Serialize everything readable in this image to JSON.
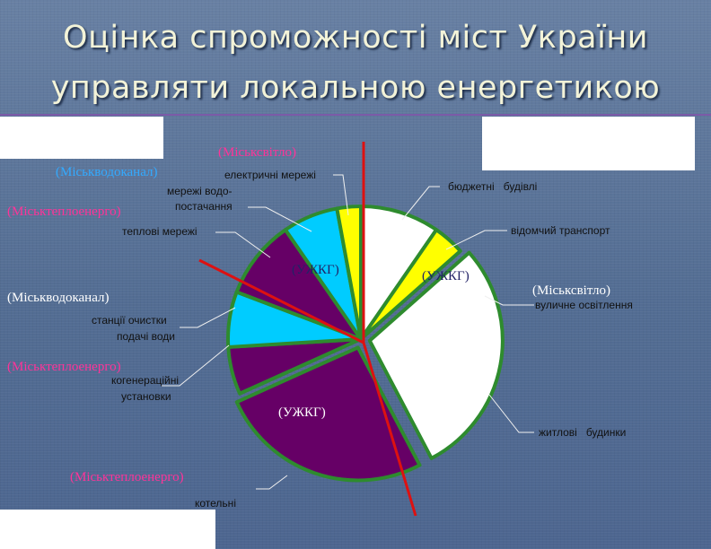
{
  "slide": {
    "title_line1": "Оцінка спроможності міст України",
    "title_line2": "управляти локальною енергетикою"
  },
  "colors": {
    "white": "#ffffff",
    "yellow": "#ffff00",
    "cyan": "#00ccff",
    "purple": "#660066",
    "outline": "#2e8b2e",
    "divider": "#dd1111",
    "ann_blue": "#33aaff",
    "ann_pink": "#ff3399",
    "ann_dark": "#222266",
    "ann_white": "#ffffff"
  },
  "chart_data": {
    "type": "pie",
    "title": "",
    "slices": [
      {
        "label": "бюджетні будівлі",
        "value": 10,
        "color": "#ffffff",
        "exploded": false
      },
      {
        "label": "відомчий транспорт",
        "value": 4,
        "color": "#ffff00",
        "exploded": false
      },
      {
        "label": "вуличне освітлення",
        "value": 0,
        "color": "#ffff00",
        "exploded": false
      },
      {
        "label": "житлові будинки",
        "value": 30,
        "color": "#ffffff",
        "exploded": true
      },
      {
        "label": "котельні",
        "value": 27,
        "color": "#660066",
        "exploded": true
      },
      {
        "label": "когенераційні установки",
        "value": 6,
        "color": "#660066",
        "exploded": false
      },
      {
        "label": "станції очистки подачі води",
        "value": 7,
        "color": "#00ccff",
        "exploded": false
      },
      {
        "label": "теплові мережі",
        "value": 10,
        "color": "#660066",
        "exploded": false
      },
      {
        "label": "мережі водо- постачання",
        "value": 7,
        "color": "#00ccff",
        "exploded": false
      },
      {
        "label": "електричні мережі",
        "value": 3,
        "color": "#ffff00",
        "exploded": false
      }
    ],
    "annotations": {
      "misksvitlo_top": "(Міськсвітло)",
      "mvk_top": "(Міськводоканал)",
      "mte_top": "(Міськтеплоенерго)",
      "uzhkg_left": "(УЖКГ)",
      "uzhkg_right": "(УЖКГ)",
      "misksvitlo_right": "(Міськсвітло)",
      "mvk_mid": "(Міськводоканал)",
      "mte_mid": "(Міськтеплоенерго)",
      "uzhkg_bottom": "(УЖКГ)",
      "mte_bottom": "(Міськтеплоенерго)"
    }
  }
}
